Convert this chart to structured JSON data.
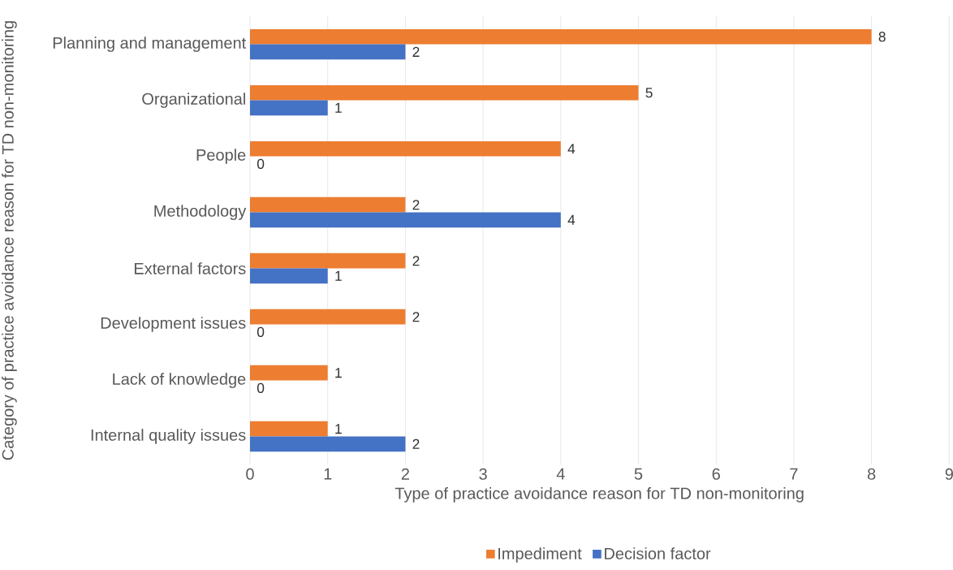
{
  "chart_data": {
    "type": "bar",
    "orientation": "horizontal",
    "xlabel": "Type of practice avoidance reason for TD non-monitoring",
    "ylabel": "Category of practice avoidance reason for TD non-monitoring",
    "categories": [
      "Planning and management",
      "Organizational",
      "People",
      "Methodology",
      "External factors",
      "Development issues",
      "Lack of knowledge",
      "Internal quality issues"
    ],
    "series": [
      {
        "name": "Impediment",
        "color": "#ed7d31",
        "values": [
          8,
          5,
          4,
          2,
          2,
          2,
          1,
          1
        ]
      },
      {
        "name": "Decision factor",
        "color": "#4472c4",
        "values": [
          2,
          1,
          0,
          4,
          1,
          0,
          0,
          2
        ]
      }
    ],
    "xlim": [
      0,
      9
    ],
    "xticks": [
      0,
      1,
      2,
      3,
      4,
      5,
      6,
      7,
      8,
      9
    ],
    "grid": "x",
    "legend": "bottom",
    "data_labels": true
  }
}
